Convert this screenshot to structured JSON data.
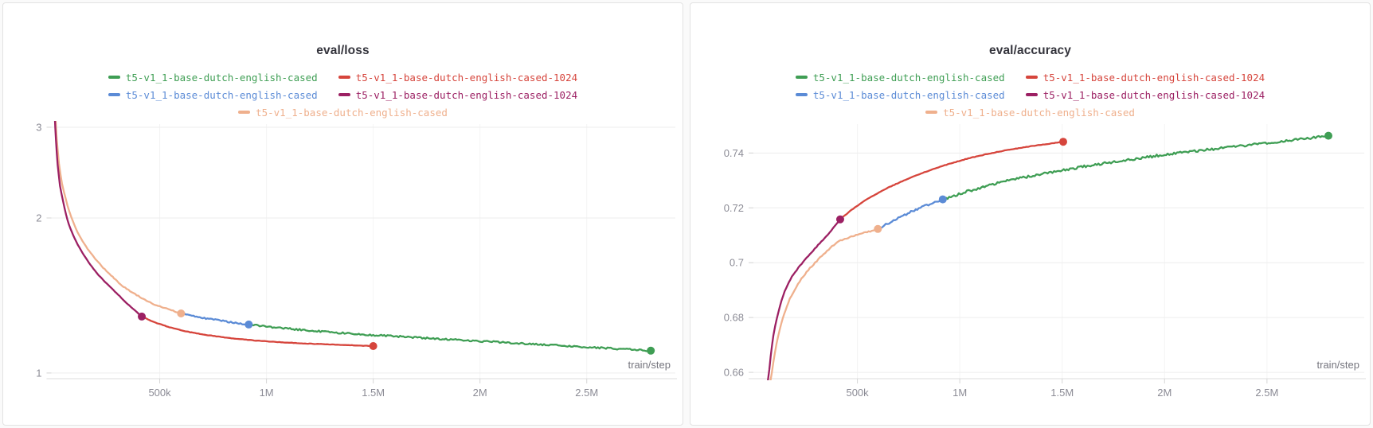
{
  "x_axis_label": "train/step",
  "chart_data": [
    {
      "type": "line",
      "title": "eval/loss",
      "xlabel": "train/step",
      "y_scale": "log",
      "xlim": [
        0,
        2915000
      ],
      "ylim": [
        0.975,
        3.086
      ],
      "x_ticks": [
        {
          "value": 500000,
          "label": "500k"
        },
        {
          "value": 1000000,
          "label": "1M"
        },
        {
          "value": 1500000,
          "label": "1.5M"
        },
        {
          "value": 2000000,
          "label": "2M"
        },
        {
          "value": 2500000,
          "label": "2.5M"
        }
      ],
      "y_ticks": [
        {
          "value": 1,
          "label": "1"
        },
        {
          "value": 2,
          "label": "2"
        },
        {
          "value": 3,
          "label": "3"
        }
      ],
      "legend": [
        {
          "label": "t5-v1_1-base-dutch-english-cased",
          "color": "#3f9e54"
        },
        {
          "label": "t5-v1_1-base-dutch-english-cased-1024",
          "color": "#d6453c"
        },
        {
          "label": "t5-v1_1-base-dutch-english-cased",
          "color": "#5b8bd6"
        },
        {
          "label": "t5-v1_1-base-dutch-english-cased-1024",
          "color": "#9c2063"
        },
        {
          "label": "t5-v1_1-base-dutch-english-cased",
          "color": "#efb08d"
        }
      ],
      "series": [
        {
          "name": "t5-v1_1-base-dutch-english-cased",
          "color": "#3f9e54",
          "noise": 1.0,
          "end_dot": true,
          "points": [
            [
              917000,
              1.242
            ],
            [
              1050000,
              1.225
            ],
            [
              1200000,
              1.209
            ],
            [
              1350000,
              1.196
            ],
            [
              1500000,
              1.185
            ],
            [
              1700000,
              1.172
            ],
            [
              1900000,
              1.159
            ],
            [
              2100000,
              1.147
            ],
            [
              2300000,
              1.135
            ],
            [
              2500000,
              1.123
            ],
            [
              2650000,
              1.114
            ],
            [
              2800000,
              1.105
            ]
          ]
        },
        {
          "name": "t5-v1_1-base-dutch-english-cased-1024",
          "color": "#d6453c",
          "noise": 0.25,
          "end_dot": true,
          "points": [
            [
              416000,
              1.287
            ],
            [
              480000,
              1.252
            ],
            [
              560000,
              1.222
            ],
            [
              650000,
              1.198
            ],
            [
              750000,
              1.18
            ],
            [
              850000,
              1.166
            ],
            [
              950000,
              1.156
            ],
            [
              1060000,
              1.148
            ],
            [
              1180000,
              1.141
            ],
            [
              1300000,
              1.136
            ],
            [
              1400000,
              1.132
            ],
            [
              1500000,
              1.128
            ]
          ]
        },
        {
          "name": "t5-v1_1-base-dutch-english-cased",
          "color": "#5b8bd6",
          "noise": 0.9,
          "end_dot": true,
          "points": [
            [
              600000,
              1.305
            ],
            [
              680000,
              1.285
            ],
            [
              760000,
              1.268
            ],
            [
              840000,
              1.254
            ],
            [
              917000,
              1.242
            ]
          ]
        },
        {
          "name": "t5-v1_1-base-dutch-english-cased-1024",
          "color": "#9c2063",
          "noise": 0.25,
          "end_dot": true,
          "points": [
            [
              8000,
              3.2
            ],
            [
              14000,
              2.8
            ],
            [
              22000,
              2.5
            ],
            [
              33000,
              2.28
            ],
            [
              48000,
              2.1
            ],
            [
              68000,
              1.96
            ],
            [
              95000,
              1.84
            ],
            [
              130000,
              1.73
            ],
            [
              175000,
              1.62
            ],
            [
              230000,
              1.52
            ],
            [
              290000,
              1.44
            ],
            [
              350000,
              1.36
            ],
            [
              416000,
              1.287
            ]
          ]
        },
        {
          "name": "t5-v1_1-base-dutch-english-cased",
          "color": "#efb08d",
          "noise": 0.6,
          "end_dot": true,
          "points": [
            [
              11000,
              3.2
            ],
            [
              18000,
              2.8
            ],
            [
              28000,
              2.52
            ],
            [
              42000,
              2.3
            ],
            [
              60000,
              2.13
            ],
            [
              85000,
              1.99
            ],
            [
              115000,
              1.87
            ],
            [
              155000,
              1.75
            ],
            [
              205000,
              1.65
            ],
            [
              265000,
              1.555
            ],
            [
              330000,
              1.47
            ],
            [
              400000,
              1.41
            ],
            [
              470000,
              1.36
            ],
            [
              540000,
              1.33
            ],
            [
              600000,
              1.305
            ]
          ]
        }
      ]
    },
    {
      "type": "line",
      "title": "eval/accuracy",
      "xlabel": "train/step",
      "y_scale": "linear",
      "xlim": [
        0,
        2975000
      ],
      "ylim": [
        0.6577,
        0.7517
      ],
      "x_ticks": [
        {
          "value": 500000,
          "label": "500k"
        },
        {
          "value": 1000000,
          "label": "1M"
        },
        {
          "value": 1500000,
          "label": "1.5M"
        },
        {
          "value": 2000000,
          "label": "2M"
        },
        {
          "value": 2500000,
          "label": "2.5M"
        }
      ],
      "y_ticks": [
        {
          "value": 0.66,
          "label": "0.66"
        },
        {
          "value": 0.68,
          "label": "0.68"
        },
        {
          "value": 0.7,
          "label": "0.7"
        },
        {
          "value": 0.72,
          "label": "0.72"
        },
        {
          "value": 0.74,
          "label": "0.74"
        }
      ],
      "legend": [
        {
          "label": "t5-v1_1-base-dutch-english-cased",
          "color": "#3f9e54"
        },
        {
          "label": "t5-v1_1-base-dutch-english-cased-1024",
          "color": "#d6453c"
        },
        {
          "label": "t5-v1_1-base-dutch-english-cased",
          "color": "#5b8bd6"
        },
        {
          "label": "t5-v1_1-base-dutch-english-cased-1024",
          "color": "#9c2063"
        },
        {
          "label": "t5-v1_1-base-dutch-english-cased",
          "color": "#efb08d"
        }
      ],
      "series": [
        {
          "name": "t5-v1_1-base-dutch-english-cased",
          "color": "#3f9e54",
          "noise": 1.5,
          "end_dot": true,
          "points": [
            [
              917000,
              0.7231
            ],
            [
              1050000,
              0.7263
            ],
            [
              1200000,
              0.7293
            ],
            [
              1350000,
              0.7317
            ],
            [
              1500000,
              0.7337
            ],
            [
              1700000,
              0.7362
            ],
            [
              1900000,
              0.7384
            ],
            [
              2100000,
              0.7403
            ],
            [
              2300000,
              0.742
            ],
            [
              2500000,
              0.7437
            ],
            [
              2650000,
              0.7449
            ],
            [
              2800000,
              0.7463
            ]
          ]
        },
        {
          "name": "t5-v1_1-base-dutch-english-cased-1024",
          "color": "#d6453c",
          "noise": 0.3,
          "end_dot": true,
          "points": [
            [
              416000,
              0.7158
            ],
            [
              480000,
              0.7198
            ],
            [
              560000,
              0.7238
            ],
            [
              650000,
              0.7274
            ],
            [
              750000,
              0.7307
            ],
            [
              850000,
              0.7336
            ],
            [
              950000,
              0.7361
            ],
            [
              1050000,
              0.7382
            ],
            [
              1150000,
              0.7399
            ],
            [
              1250000,
              0.7413
            ],
            [
              1350000,
              0.7425
            ],
            [
              1430000,
              0.7433
            ],
            [
              1505000,
              0.7441
            ]
          ]
        },
        {
          "name": "t5-v1_1-base-dutch-english-cased",
          "color": "#5b8bd6",
          "noise": 1.2,
          "end_dot": true,
          "points": [
            [
              600000,
              0.7123
            ],
            [
              700000,
              0.7163
            ],
            [
              800000,
              0.7199
            ],
            [
              917000,
              0.7231
            ]
          ]
        },
        {
          "name": "t5-v1_1-base-dutch-english-cased-1024",
          "color": "#9c2063",
          "noise": 0.5,
          "end_dot": true,
          "points": [
            [
              55000,
              0.65
            ],
            [
              70000,
              0.6635
            ],
            [
              90000,
              0.675
            ],
            [
              115000,
              0.6838
            ],
            [
              145000,
              0.6905
            ],
            [
              180000,
              0.695
            ],
            [
              220000,
              0.699
            ],
            [
              260000,
              0.7025
            ],
            [
              300000,
              0.7058
            ],
            [
              340000,
              0.7089
            ],
            [
              380000,
              0.7124
            ],
            [
              416000,
              0.7158
            ]
          ]
        },
        {
          "name": "t5-v1_1-base-dutch-english-cased",
          "color": "#efb08d",
          "noise": 0.8,
          "end_dot": true,
          "points": [
            [
              65000,
              0.65
            ],
            [
              82000,
              0.662
            ],
            [
              105000,
              0.672
            ],
            [
              135000,
              0.6805
            ],
            [
              170000,
              0.687
            ],
            [
              210000,
              0.6925
            ],
            [
              260000,
              0.6975
            ],
            [
              310000,
              0.7013
            ],
            [
              360000,
              0.7048
            ],
            [
              410000,
              0.7082
            ],
            [
              470000,
              0.7095
            ],
            [
              540000,
              0.711
            ],
            [
              600000,
              0.7123
            ]
          ]
        }
      ]
    }
  ]
}
